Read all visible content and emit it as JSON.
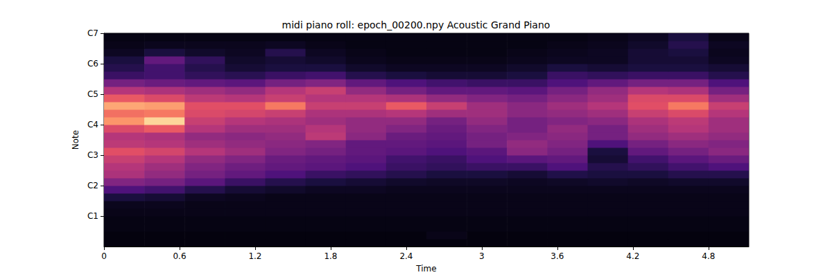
{
  "chart_data": {
    "type": "heatmap",
    "title": "midi piano roll: epoch_00200.npy Acoustic Grand Piano",
    "x_label": "Time",
    "y_label": "Note",
    "xlim": [
      0,
      5.12
    ],
    "xticks": [
      0,
      0.6,
      1.2,
      1.8,
      2.4,
      3,
      3.6,
      4.2,
      4.8
    ],
    "ylim": [
      12,
      96
    ],
    "yticks": [
      {
        "value": 24,
        "label": "C1"
      },
      {
        "value": 36,
        "label": "C2"
      },
      {
        "value": 48,
        "label": "C3"
      },
      {
        "value": 60,
        "label": "C4"
      },
      {
        "value": 72,
        "label": "C5"
      },
      {
        "value": 84,
        "label": "C6"
      },
      {
        "value": 96,
        "label": "C7"
      }
    ],
    "grid": false,
    "color_range": [
      0,
      1
    ],
    "time_edges": [
      0,
      0.32,
      0.64,
      0.96,
      1.28,
      1.6,
      1.92,
      2.24,
      2.56,
      2.88,
      3.2,
      3.52,
      3.84,
      4.16,
      4.48,
      4.8,
      5.12
    ],
    "note_edges": [
      12,
      15,
      18,
      21,
      24,
      27,
      30,
      33,
      36,
      39,
      42,
      45,
      48,
      51,
      54,
      57,
      60,
      63,
      66,
      69,
      72,
      75,
      78,
      81,
      84,
      87,
      90,
      93,
      96
    ],
    "cells": [
      [
        0.02,
        0.02,
        0.02,
        0.02,
        0.02,
        0.02,
        0.02,
        0.02,
        0.02,
        0.02,
        0.02,
        0.02,
        0.02,
        0.02,
        0.02,
        0.02
      ],
      [
        0.02,
        0.02,
        0.02,
        0.02,
        0.02,
        0.02,
        0.02,
        0.02,
        0.04,
        0.02,
        0.02,
        0.02,
        0.02,
        0.02,
        0.02,
        0.02
      ],
      [
        0.03,
        0.03,
        0.03,
        0.03,
        0.03,
        0.03,
        0.03,
        0.03,
        0.03,
        0.03,
        0.03,
        0.03,
        0.03,
        0.03,
        0.03,
        0.03
      ],
      [
        0.03,
        0.03,
        0.03,
        0.03,
        0.03,
        0.03,
        0.03,
        0.03,
        0.03,
        0.03,
        0.03,
        0.03,
        0.03,
        0.03,
        0.03,
        0.03
      ],
      [
        0.04,
        0.04,
        0.04,
        0.04,
        0.04,
        0.04,
        0.04,
        0.04,
        0.04,
        0.04,
        0.04,
        0.04,
        0.04,
        0.04,
        0.04,
        0.04
      ],
      [
        0.05,
        0.05,
        0.04,
        0.04,
        0.04,
        0.04,
        0.04,
        0.04,
        0.04,
        0.04,
        0.04,
        0.04,
        0.04,
        0.04,
        0.04,
        0.04
      ],
      [
        0.12,
        0.1,
        0.06,
        0.05,
        0.04,
        0.04,
        0.04,
        0.04,
        0.04,
        0.04,
        0.04,
        0.04,
        0.04,
        0.04,
        0.04,
        0.04
      ],
      [
        0.25,
        0.22,
        0.15,
        0.1,
        0.08,
        0.06,
        0.06,
        0.05,
        0.05,
        0.05,
        0.05,
        0.05,
        0.05,
        0.05,
        0.05,
        0.05
      ],
      [
        0.38,
        0.35,
        0.28,
        0.2,
        0.15,
        0.12,
        0.1,
        0.08,
        0.07,
        0.07,
        0.06,
        0.07,
        0.08,
        0.07,
        0.08,
        0.08
      ],
      [
        0.48,
        0.42,
        0.35,
        0.3,
        0.25,
        0.2,
        0.18,
        0.15,
        0.12,
        0.12,
        0.1,
        0.14,
        0.12,
        0.12,
        0.15,
        0.15
      ],
      [
        0.5,
        0.45,
        0.38,
        0.33,
        0.3,
        0.28,
        0.25,
        0.2,
        0.18,
        0.2,
        0.2,
        0.25,
        0.15,
        0.18,
        0.22,
        0.25
      ],
      [
        0.55,
        0.5,
        0.42,
        0.38,
        0.32,
        0.3,
        0.28,
        0.22,
        0.2,
        0.25,
        0.28,
        0.3,
        0.1,
        0.22,
        0.28,
        0.32
      ],
      [
        0.62,
        0.58,
        0.5,
        0.45,
        0.38,
        0.35,
        0.3,
        0.28,
        0.25,
        0.28,
        0.4,
        0.35,
        0.12,
        0.3,
        0.35,
        0.4
      ],
      [
        0.52,
        0.5,
        0.45,
        0.42,
        0.4,
        0.38,
        0.3,
        0.3,
        0.28,
        0.35,
        0.42,
        0.38,
        0.25,
        0.35,
        0.4,
        0.38
      ],
      [
        0.5,
        0.48,
        0.42,
        0.4,
        0.42,
        0.52,
        0.4,
        0.32,
        0.3,
        0.35,
        0.38,
        0.4,
        0.35,
        0.42,
        0.45,
        0.42
      ],
      [
        0.6,
        0.65,
        0.5,
        0.45,
        0.45,
        0.5,
        0.42,
        0.38,
        0.32,
        0.38,
        0.35,
        0.42,
        0.35,
        0.45,
        0.5,
        0.45
      ],
      [
        0.78,
        0.92,
        0.55,
        0.5,
        0.48,
        0.45,
        0.42,
        0.42,
        0.35,
        0.42,
        0.35,
        0.38,
        0.4,
        0.48,
        0.52,
        0.45
      ],
      [
        0.7,
        0.72,
        0.6,
        0.58,
        0.55,
        0.48,
        0.48,
        0.5,
        0.45,
        0.45,
        0.4,
        0.42,
        0.45,
        0.55,
        0.6,
        0.5
      ],
      [
        0.82,
        0.8,
        0.62,
        0.62,
        0.72,
        0.55,
        0.55,
        0.65,
        0.55,
        0.45,
        0.4,
        0.45,
        0.5,
        0.62,
        0.72,
        0.55
      ],
      [
        0.65,
        0.6,
        0.52,
        0.5,
        0.55,
        0.5,
        0.5,
        0.48,
        0.42,
        0.38,
        0.35,
        0.4,
        0.45,
        0.6,
        0.6,
        0.45
      ],
      [
        0.5,
        0.48,
        0.45,
        0.42,
        0.5,
        0.55,
        0.42,
        0.35,
        0.3,
        0.3,
        0.28,
        0.35,
        0.42,
        0.5,
        0.48,
        0.35
      ],
      [
        0.35,
        0.32,
        0.3,
        0.28,
        0.35,
        0.38,
        0.3,
        0.25,
        0.22,
        0.2,
        0.2,
        0.25,
        0.3,
        0.35,
        0.35,
        0.25
      ],
      [
        0.2,
        0.22,
        0.18,
        0.16,
        0.2,
        0.22,
        0.15,
        0.12,
        0.1,
        0.1,
        0.12,
        0.2,
        0.18,
        0.2,
        0.2,
        0.15
      ],
      [
        0.15,
        0.22,
        0.15,
        0.1,
        0.12,
        0.12,
        0.08,
        0.06,
        0.06,
        0.06,
        0.08,
        0.12,
        0.1,
        0.12,
        0.12,
        0.1
      ],
      [
        0.12,
        0.3,
        0.18,
        0.08,
        0.1,
        0.08,
        0.05,
        0.04,
        0.04,
        0.04,
        0.05,
        0.06,
        0.06,
        0.1,
        0.1,
        0.06
      ],
      [
        0.06,
        0.12,
        0.08,
        0.06,
        0.15,
        0.06,
        0.04,
        0.03,
        0.03,
        0.03,
        0.04,
        0.05,
        0.06,
        0.1,
        0.12,
        0.05
      ],
      [
        0.04,
        0.05,
        0.05,
        0.05,
        0.06,
        0.04,
        0.03,
        0.03,
        0.03,
        0.03,
        0.03,
        0.04,
        0.05,
        0.08,
        0.15,
        0.06
      ],
      [
        0.03,
        0.03,
        0.03,
        0.03,
        0.03,
        0.03,
        0.03,
        0.03,
        0.03,
        0.03,
        0.03,
        0.03,
        0.04,
        0.06,
        0.12,
        0.04
      ]
    ]
  }
}
